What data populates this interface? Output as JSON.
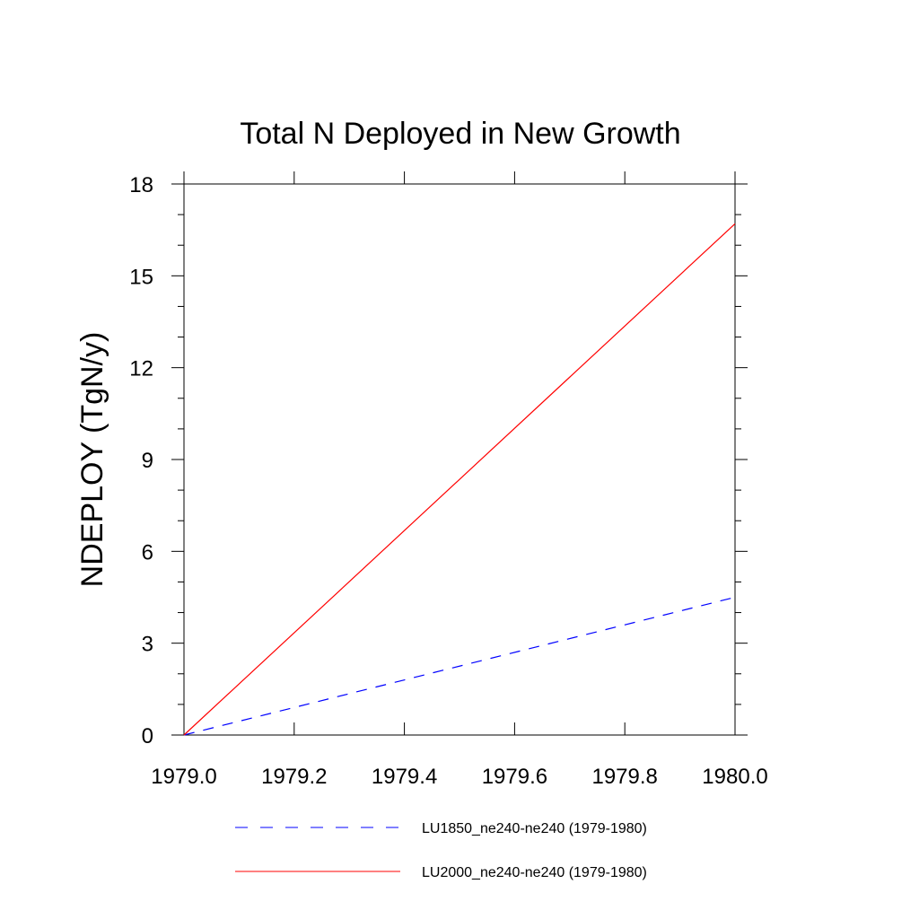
{
  "chart_data": {
    "type": "line",
    "title": "Total N Deployed in New Growth",
    "xlabel": "",
    "ylabel": "NDEPLOY  (TgN/y)",
    "xlim": [
      1979.0,
      1980.0
    ],
    "ylim": [
      0,
      18
    ],
    "x_ticks": [
      "1979.0",
      "1979.2",
      "1979.4",
      "1979.6",
      "1979.8",
      "1980.0"
    ],
    "y_ticks": [
      "0",
      "3",
      "6",
      "9",
      "12",
      "15",
      "18"
    ],
    "grid": false,
    "legend_position": "bottom",
    "series": [
      {
        "name": "LU1850_ne240-ne240 (1979-1980)",
        "color": "#0000ff",
        "dash": "dashed",
        "x": [
          1979.0,
          1980.0
        ],
        "y": [
          0,
          4.5
        ]
      },
      {
        "name": "LU2000_ne240-ne240 (1979-1980)",
        "color": "#ff0000",
        "dash": "solid",
        "x": [
          1979.0,
          1980.0
        ],
        "y": [
          0,
          16.7
        ]
      }
    ]
  }
}
